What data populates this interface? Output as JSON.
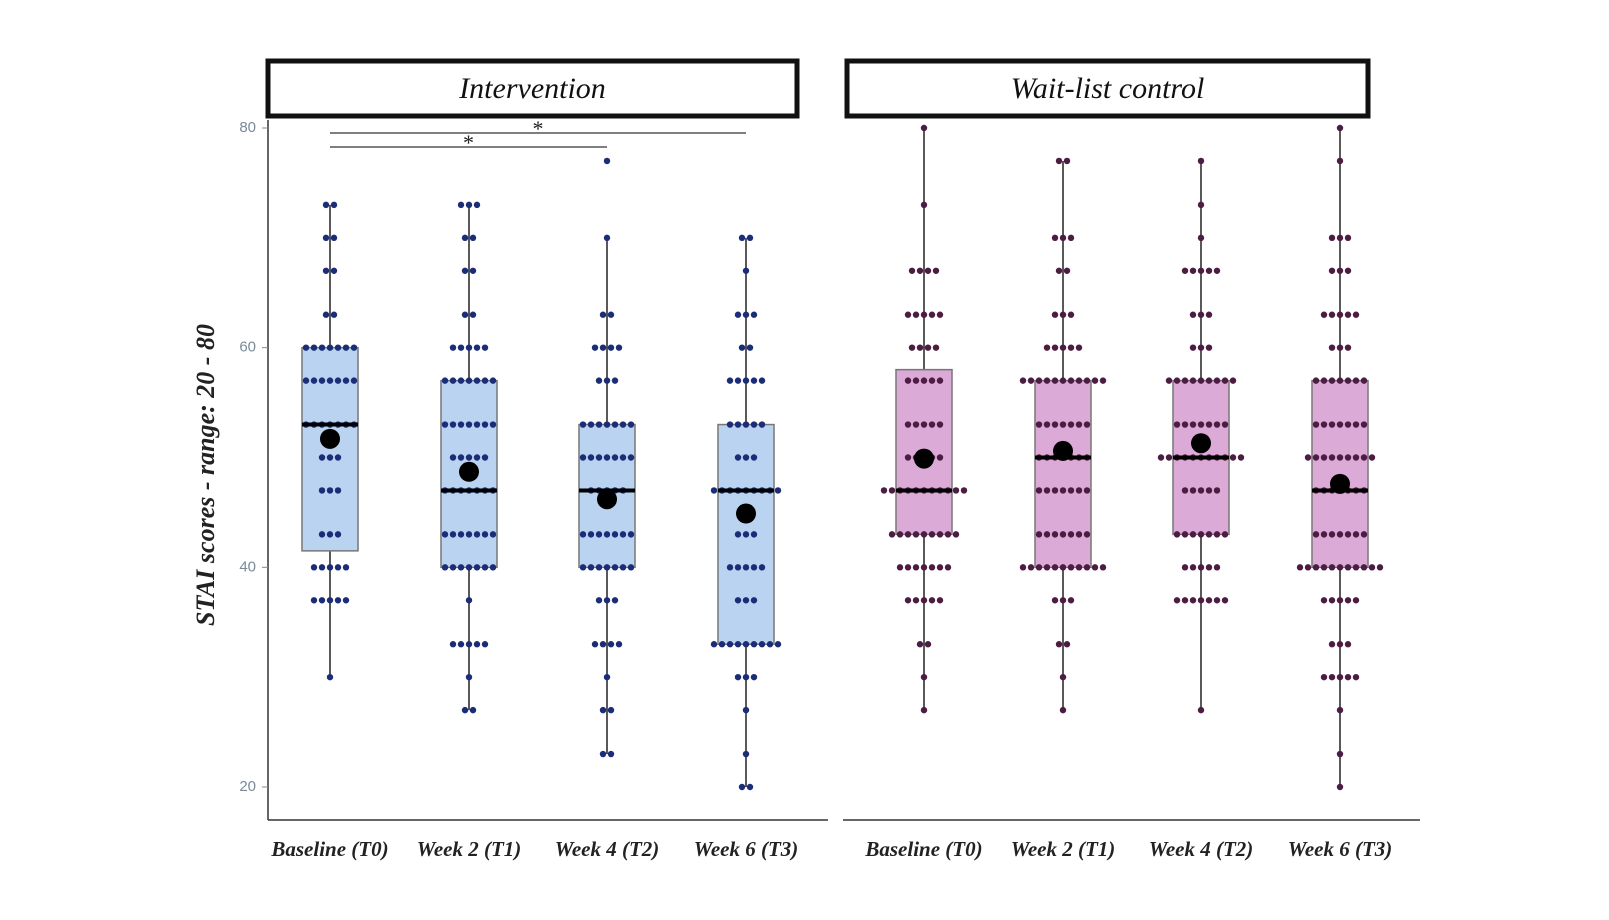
{
  "chart_data": [
    {
      "type": "box",
      "title": "Intervention",
      "ylabel": "STAI scores - range: 20 - 80",
      "ylim": [
        20,
        80
      ],
      "yticks": [
        20,
        40,
        60,
        80
      ],
      "box_color": "#b9d3f1",
      "point_color": "#1c2d78",
      "categories": [
        "Baseline (T0)",
        "Week 2 (T1)",
        "Week 4 (T2)",
        "Week 6 (T3)"
      ],
      "q1": [
        41.5,
        40,
        40,
        33
      ],
      "median": [
        53,
        47,
        47,
        47
      ],
      "q3": [
        60,
        57,
        53,
        53
      ],
      "whisker_low": [
        30,
        27,
        23,
        20
      ],
      "whisker_high": [
        73,
        73,
        70,
        70
      ],
      "means": [
        51.7,
        48.7,
        46.2,
        44.9
      ],
      "points": [
        [
          {
            "value": 73,
            "count": 2
          },
          {
            "value": 70,
            "count": 2
          },
          {
            "value": 67,
            "count": 2
          },
          {
            "value": 63,
            "count": 2
          },
          {
            "value": 60,
            "count": 7
          },
          {
            "value": 57,
            "count": 7
          },
          {
            "value": 53,
            "count": 7
          },
          {
            "value": 50,
            "count": 3
          },
          {
            "value": 47,
            "count": 3
          },
          {
            "value": 43,
            "count": 3
          },
          {
            "value": 40,
            "count": 5
          },
          {
            "value": 37,
            "count": 5
          },
          {
            "value": 30,
            "count": 1
          }
        ],
        [
          {
            "value": 73,
            "count": 3
          },
          {
            "value": 70,
            "count": 2
          },
          {
            "value": 67,
            "count": 2
          },
          {
            "value": 63,
            "count": 2
          },
          {
            "value": 60,
            "count": 5
          },
          {
            "value": 57,
            "count": 7
          },
          {
            "value": 53,
            "count": 7
          },
          {
            "value": 50,
            "count": 5
          },
          {
            "value": 47,
            "count": 7
          },
          {
            "value": 43,
            "count": 7
          },
          {
            "value": 40,
            "count": 7
          },
          {
            "value": 37,
            "count": 1
          },
          {
            "value": 33,
            "count": 5
          },
          {
            "value": 30,
            "count": 1
          },
          {
            "value": 27,
            "count": 2
          }
        ],
        [
          {
            "value": 77,
            "count": 1
          },
          {
            "value": 70,
            "count": 1
          },
          {
            "value": 63,
            "count": 2
          },
          {
            "value": 60,
            "count": 4
          },
          {
            "value": 57,
            "count": 3
          },
          {
            "value": 53,
            "count": 7
          },
          {
            "value": 50,
            "count": 7
          },
          {
            "value": 47,
            "count": 5
          },
          {
            "value": 43,
            "count": 7
          },
          {
            "value": 40,
            "count": 7
          },
          {
            "value": 37,
            "count": 3
          },
          {
            "value": 33,
            "count": 4
          },
          {
            "value": 30,
            "count": 1
          },
          {
            "value": 27,
            "count": 2
          },
          {
            "value": 23,
            "count": 2
          }
        ],
        [
          {
            "value": 70,
            "count": 2
          },
          {
            "value": 67,
            "count": 1
          },
          {
            "value": 63,
            "count": 3
          },
          {
            "value": 60,
            "count": 2
          },
          {
            "value": 57,
            "count": 5
          },
          {
            "value": 53,
            "count": 5
          },
          {
            "value": 50,
            "count": 3
          },
          {
            "value": 47,
            "count": 9
          },
          {
            "value": 43,
            "count": 3
          },
          {
            "value": 40,
            "count": 5
          },
          {
            "value": 37,
            "count": 3
          },
          {
            "value": 33,
            "count": 9
          },
          {
            "value": 30,
            "count": 3
          },
          {
            "value": 27,
            "count": 1
          },
          {
            "value": 23,
            "count": 1
          },
          {
            "value": 20,
            "count": 2
          }
        ]
      ],
      "comparisons": [
        {
          "from": 0,
          "to": 3,
          "label": "*"
        },
        {
          "from": 0,
          "to": 2,
          "label": "*"
        }
      ]
    },
    {
      "type": "box",
      "title": "Wait-list control",
      "box_color": "#dcaad6",
      "point_color": "#4d1c42",
      "categories": [
        "Baseline (T0)",
        "Week 2 (T1)",
        "Week 4 (T2)",
        "Week 6 (T3)"
      ],
      "q1": [
        43,
        40,
        43,
        40
      ],
      "median": [
        47,
        50,
        50,
        47
      ],
      "q3": [
        58,
        57,
        57,
        57
      ],
      "whisker_low": [
        27,
        27,
        27,
        20
      ],
      "whisker_high": [
        80,
        77,
        77,
        80
      ],
      "means": [
        49.9,
        50.6,
        51.3,
        47.6
      ],
      "points": [
        [
          {
            "value": 80,
            "count": 1
          },
          {
            "value": 73,
            "count": 1
          },
          {
            "value": 67,
            "count": 4
          },
          {
            "value": 63,
            "count": 5
          },
          {
            "value": 60,
            "count": 4
          },
          {
            "value": 57,
            "count": 5
          },
          {
            "value": 53,
            "count": 5
          },
          {
            "value": 50,
            "count": 5
          },
          {
            "value": 47,
            "count": 11
          },
          {
            "value": 43,
            "count": 9
          },
          {
            "value": 40,
            "count": 7
          },
          {
            "value": 37,
            "count": 5
          },
          {
            "value": 33,
            "count": 2
          },
          {
            "value": 30,
            "count": 1
          },
          {
            "value": 27,
            "count": 1
          }
        ],
        [
          {
            "value": 77,
            "count": 2
          },
          {
            "value": 70,
            "count": 3
          },
          {
            "value": 67,
            "count": 2
          },
          {
            "value": 63,
            "count": 3
          },
          {
            "value": 60,
            "count": 5
          },
          {
            "value": 57,
            "count": 11
          },
          {
            "value": 53,
            "count": 7
          },
          {
            "value": 50,
            "count": 7
          },
          {
            "value": 47,
            "count": 7
          },
          {
            "value": 43,
            "count": 7
          },
          {
            "value": 40,
            "count": 11
          },
          {
            "value": 37,
            "count": 3
          },
          {
            "value": 33,
            "count": 2
          },
          {
            "value": 30,
            "count": 1
          },
          {
            "value": 27,
            "count": 1
          }
        ],
        [
          {
            "value": 77,
            "count": 1
          },
          {
            "value": 73,
            "count": 1
          },
          {
            "value": 70,
            "count": 1
          },
          {
            "value": 67,
            "count": 5
          },
          {
            "value": 63,
            "count": 3
          },
          {
            "value": 60,
            "count": 3
          },
          {
            "value": 57,
            "count": 9
          },
          {
            "value": 53,
            "count": 7
          },
          {
            "value": 50,
            "count": 11
          },
          {
            "value": 47,
            "count": 5
          },
          {
            "value": 43,
            "count": 7
          },
          {
            "value": 40,
            "count": 5
          },
          {
            "value": 37,
            "count": 7
          },
          {
            "value": 27,
            "count": 1
          }
        ],
        [
          {
            "value": 80,
            "count": 1
          },
          {
            "value": 77,
            "count": 1
          },
          {
            "value": 70,
            "count": 3
          },
          {
            "value": 67,
            "count": 3
          },
          {
            "value": 63,
            "count": 5
          },
          {
            "value": 60,
            "count": 3
          },
          {
            "value": 57,
            "count": 7
          },
          {
            "value": 53,
            "count": 7
          },
          {
            "value": 50,
            "count": 9
          },
          {
            "value": 47,
            "count": 7
          },
          {
            "value": 43,
            "count": 7
          },
          {
            "value": 40,
            "count": 11
          },
          {
            "value": 37,
            "count": 5
          },
          {
            "value": 33,
            "count": 3
          },
          {
            "value": 30,
            "count": 5
          },
          {
            "value": 27,
            "count": 1
          },
          {
            "value": 23,
            "count": 1
          },
          {
            "value": 20,
            "count": 1
          }
        ]
      ]
    }
  ]
}
